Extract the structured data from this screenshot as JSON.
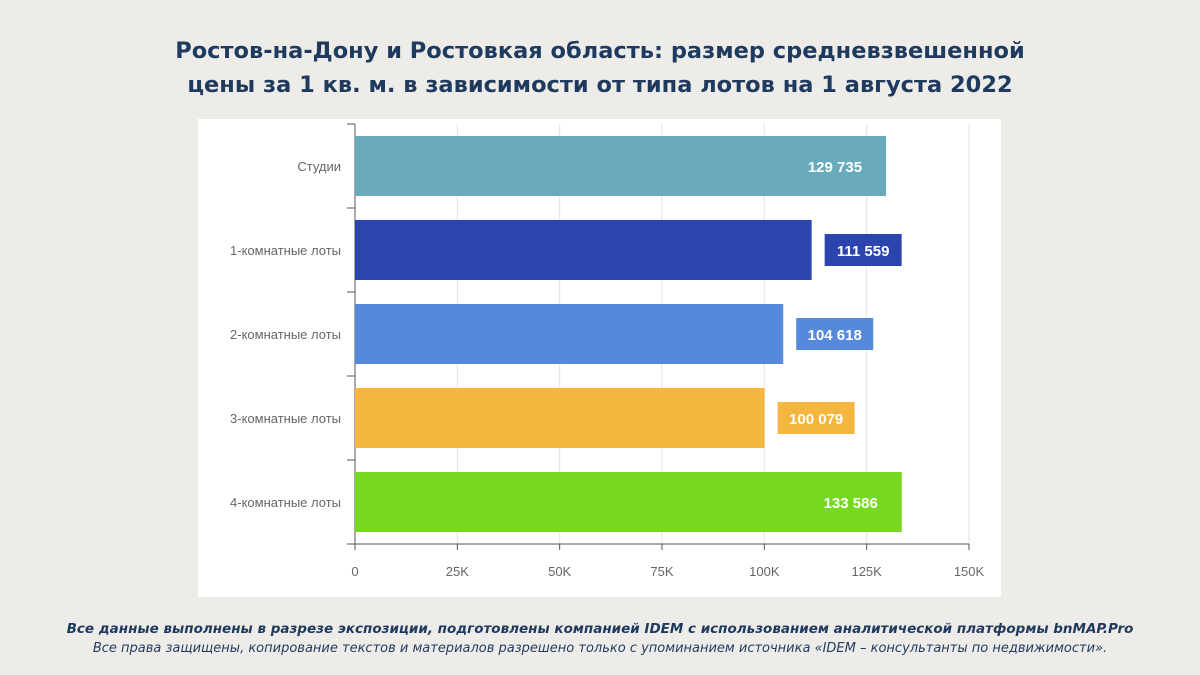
{
  "header": {
    "title_line1": "Ростов-на-Дону и Ростовкая область: размер средневзвешенной",
    "title_line2": "цены за 1 кв. м. в зависимости от типа лотов на 1 августа 2022"
  },
  "footer": {
    "line1": "Все данные выполнены в разрезе экспозиции, подготовлены компанией IDEM с использованием аналитической платформы bnMAP.Pro",
    "line2": "Все права защищены, копирование текстов и материалов разрешено только с упоминанием источника «IDEM – консультанты по недвижимости»."
  },
  "chart_data": {
    "type": "bar",
    "orientation": "horizontal",
    "categories": [
      "Студии",
      "1-комнатные лоты",
      "2-комнатные лоты",
      "3-комнатные лоты",
      "4-комнатные лоты"
    ],
    "values": [
      129735,
      111559,
      104618,
      100079,
      133586
    ],
    "data_labels": [
      "129 735",
      "111 559",
      "104 618",
      "100 079",
      "133 586"
    ],
    "label_position": [
      "inside",
      "outside",
      "outside",
      "outside",
      "inside"
    ],
    "colors": [
      "#69abbd",
      "#2b45ad",
      "#5689db",
      "#f4b63e",
      "#77d822"
    ],
    "xlim": [
      0,
      150000
    ],
    "x_ticks": [
      0,
      25000,
      50000,
      75000,
      100000,
      125000,
      150000
    ],
    "x_tick_labels": [
      "0",
      "25K",
      "50K",
      "75K",
      "100K",
      "125K",
      "150K"
    ],
    "grid": true,
    "xlabel": "",
    "ylabel": "",
    "legend": "none"
  }
}
